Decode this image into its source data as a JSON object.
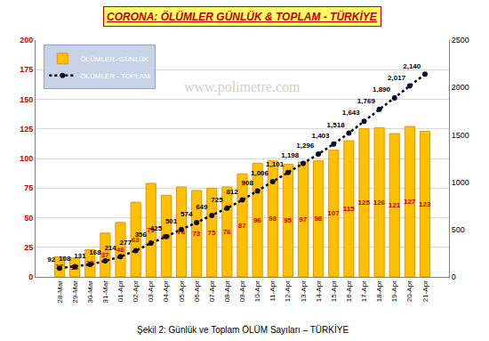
{
  "chart_data": {
    "type": "bar",
    "title": "CORONA: ÖLÜMLER GÜNLÜK & TOPLAM - TÜRKİYE",
    "watermark": "www.polimetre.com",
    "caption": "Şekil 2: Günlük ve Toplam ÖLÜM Sayıları – TÜRKİYE",
    "categories": [
      "28-Mar",
      "29-Mar",
      "30-Mar",
      "31-Mar",
      "01-Apr",
      "02-Apr",
      "03-Apr",
      "04-Apr",
      "05-Apr",
      "06-Apr",
      "07-Apr",
      "08-Apr",
      "09-Apr",
      "10-Apr",
      "11-Apr",
      "12-Apr",
      "13-Apr",
      "14-Apr",
      "15-Apr",
      "16-Apr",
      "17-Apr",
      "18-Apr",
      "19-Apr",
      "20-Apr",
      "21-Apr"
    ],
    "series": [
      {
        "name": "ÖLÜMLER- GÜNLÜK",
        "type": "bar",
        "color": "#FFC000",
        "values": [
          17,
          16,
          23,
          37,
          46,
          63,
          79,
          69,
          76,
          73,
          75,
          76,
          87,
          96,
          98,
          95,
          97,
          98,
          107,
          115,
          125,
          126,
          121,
          127,
          123
        ]
      },
      {
        "name": "ÖLÜMLER - TOPLAM",
        "type": "line",
        "color": "#000000",
        "line_style": "dotted",
        "marker": "circle",
        "axis": "y2",
        "values": [
          92,
          108,
          131,
          168,
          214,
          277,
          356,
          425,
          501,
          574,
          649,
          725,
          812,
          908,
          1006,
          1101,
          1198,
          1296,
          1403,
          1518,
          1643,
          1769,
          1890,
          2017,
          2140
        ],
        "value_labels": [
          "92",
          "108",
          "131",
          "168",
          "214",
          "277",
          "356",
          "425",
          "501",
          "574",
          "649",
          "725",
          "812",
          "908",
          "1,006",
          "1,101",
          "1,198",
          "1,296",
          "1,403",
          "1,518",
          "1,643",
          "1,769",
          "1,890",
          "2,017",
          "2,140"
        ]
      }
    ],
    "ylim": [
      0,
      200
    ],
    "yticks": [
      0,
      25,
      50,
      75,
      100,
      125,
      150,
      175,
      200
    ],
    "y2lim": [
      0,
      2500
    ],
    "y2ticks": [
      0,
      500,
      1000,
      1500,
      2000,
      2500
    ],
    "data_labels": true,
    "legend": "upper left",
    "grid": true
  }
}
